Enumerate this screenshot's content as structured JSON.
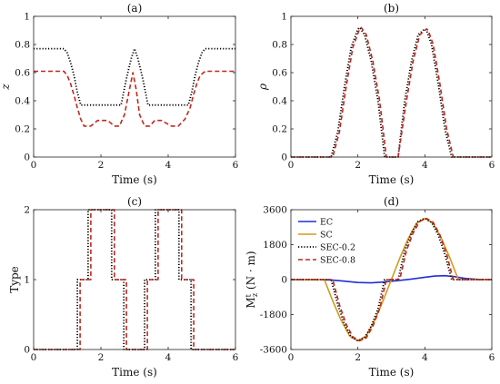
{
  "styles": {
    "EC": {
      "color": "#1f2fd6",
      "dash": "",
      "width": 1.6
    },
    "SC": {
      "color": "#d39a1c",
      "dash": "",
      "width": 1.6
    },
    "SEC-0.2": {
      "color": "#000000",
      "dash": "1.2,2",
      "width": 1.8
    },
    "SEC-0.8": {
      "color": "#c0271f",
      "dash": "5,3",
      "width": 1.6
    }
  },
  "chart_data": [
    {
      "type": "line",
      "title": "(a)",
      "xlabel": "Time (s)",
      "ylabel": "z",
      "xlim": [
        0,
        6
      ],
      "ylim": [
        0,
        1
      ],
      "xticks": [
        "0",
        "2",
        "4",
        "6"
      ],
      "yticks": [
        "0",
        "0.2",
        "0.4",
        "0.6",
        "0.8",
        "1"
      ],
      "grid": false,
      "series": [
        {
          "style": "SEC-0.2",
          "x": [
            0,
            0.9,
            1.0,
            1.1,
            1.2,
            1.3,
            1.4,
            2.6,
            2.75,
            2.9,
            3.0,
            3.1,
            3.25,
            3.4,
            4.6,
            4.7,
            4.8,
            4.9,
            5.0,
            5.1,
            5.2,
            6
          ],
          "y": [
            0.77,
            0.77,
            0.74,
            0.67,
            0.58,
            0.46,
            0.37,
            0.37,
            0.55,
            0.7,
            0.77,
            0.7,
            0.55,
            0.37,
            0.37,
            0.46,
            0.58,
            0.67,
            0.74,
            0.77,
            0.77,
            0.77
          ]
        },
        {
          "style": "SEC-0.8",
          "x": [
            0,
            0.9,
            1.0,
            1.1,
            1.2,
            1.3,
            1.4,
            1.5,
            1.7,
            1.9,
            2.2,
            2.4,
            2.55,
            2.7,
            2.85,
            2.95,
            3.05,
            3.15,
            3.3,
            3.45,
            3.6,
            3.8,
            4.1,
            4.3,
            4.5,
            4.65,
            4.75,
            4.85,
            4.95,
            5.1,
            6
          ],
          "y": [
            0.61,
            0.61,
            0.58,
            0.52,
            0.44,
            0.35,
            0.27,
            0.22,
            0.22,
            0.26,
            0.26,
            0.22,
            0.22,
            0.3,
            0.48,
            0.6,
            0.48,
            0.3,
            0.22,
            0.22,
            0.26,
            0.26,
            0.22,
            0.22,
            0.27,
            0.35,
            0.44,
            0.52,
            0.58,
            0.61,
            0.61
          ]
        }
      ]
    },
    {
      "type": "line",
      "title": "(b)",
      "xlabel": "Time (s)",
      "ylabel": "ρ",
      "xlim": [
        0,
        6
      ],
      "ylim": [
        0,
        1
      ],
      "xticks": [
        "0",
        "2",
        "4",
        "6"
      ],
      "yticks": [
        "0",
        "0.2",
        "0.4",
        "0.6",
        "0.8",
        "1"
      ],
      "grid": false,
      "series": [
        {
          "style": "SEC-0.2",
          "x": [
            0,
            1.2,
            1.4,
            1.6,
            1.8,
            2.0,
            2.05,
            2.2,
            2.4,
            2.6,
            2.8,
            3.2,
            3.4,
            3.6,
            3.8,
            4.0,
            4.05,
            4.2,
            4.4,
            4.6,
            4.8,
            6
          ],
          "y": [
            0,
            0,
            0.18,
            0.5,
            0.78,
            0.91,
            0.92,
            0.87,
            0.68,
            0.4,
            0,
            0,
            0.4,
            0.68,
            0.87,
            0.91,
            0.9,
            0.8,
            0.52,
            0.2,
            0,
            0
          ]
        },
        {
          "style": "SEC-0.8",
          "x": [
            0,
            1.25,
            1.45,
            1.65,
            1.85,
            2.05,
            2.1,
            2.25,
            2.45,
            2.65,
            2.85,
            3.2,
            3.45,
            3.65,
            3.85,
            4.05,
            4.1,
            4.25,
            4.45,
            4.65,
            4.85,
            6
          ],
          "y": [
            0,
            0,
            0.18,
            0.5,
            0.78,
            0.91,
            0.92,
            0.87,
            0.68,
            0.4,
            0,
            0,
            0.4,
            0.68,
            0.87,
            0.91,
            0.9,
            0.8,
            0.52,
            0.2,
            0,
            0
          ]
        }
      ]
    },
    {
      "type": "line",
      "title": "(c)",
      "xlabel": "Time (s)",
      "ylabel": "Type",
      "xlim": [
        0,
        6
      ],
      "ylim": [
        0,
        2
      ],
      "xticks": [
        "0",
        "2",
        "4",
        "6"
      ],
      "yticks": [
        "0",
        "1",
        "2"
      ],
      "grid": false,
      "series": [
        {
          "style": "SEC-0.2",
          "x": [
            0,
            1.3,
            1.3,
            1.62,
            1.62,
            2.32,
            2.32,
            2.68,
            2.68,
            3.3,
            3.3,
            3.62,
            3.62,
            4.32,
            4.32,
            4.68,
            4.68,
            6
          ],
          "y": [
            0,
            0,
            1,
            1,
            2,
            2,
            1,
            1,
            0,
            0,
            1,
            1,
            2,
            2,
            1,
            1,
            0,
            0
          ]
        },
        {
          "style": "SEC-0.8",
          "x": [
            0,
            1.38,
            1.38,
            1.7,
            1.7,
            2.4,
            2.4,
            2.76,
            2.76,
            3.38,
            3.38,
            3.7,
            3.7,
            4.4,
            4.4,
            4.76,
            4.76,
            6
          ],
          "y": [
            0,
            0,
            1,
            1,
            2,
            2,
            1,
            1,
            0,
            0,
            1,
            1,
            2,
            2,
            1,
            1,
            0,
            0
          ]
        }
      ]
    },
    {
      "type": "line",
      "title": "(d)",
      "xlabel": "Time (s)",
      "ylabel": "M",
      "ylabel_sup": "t",
      "ylabel_sub": "z",
      "ylabel_unit": " (N · m)",
      "xlim": [
        0,
        6
      ],
      "ylim": [
        -3600,
        3600
      ],
      "xticks": [
        "0",
        "2",
        "4",
        "6"
      ],
      "yticks": [
        "-3600",
        "-1800",
        "0",
        "1800",
        "3600"
      ],
      "grid": false,
      "legend": {
        "position": "top-left",
        "entries": [
          "EC",
          "SC",
          "SEC-0.2",
          "SEC-0.8"
        ]
      },
      "series": [
        {
          "name": "EC",
          "style": "EC",
          "x": [
            0,
            0.8,
            1.2,
            1.6,
            2.0,
            2.4,
            2.8,
            3.2,
            3.6,
            4.0,
            4.3,
            4.6,
            4.9,
            5.2,
            5.6,
            6
          ],
          "y": [
            0,
            0,
            -20,
            -80,
            -150,
            -170,
            -120,
            -50,
            30,
            120,
            180,
            200,
            150,
            60,
            10,
            0
          ]
        },
        {
          "name": "SC",
          "style": "SC",
          "x": [
            0,
            1.0,
            1.25,
            1.5,
            1.75,
            2.0,
            2.25,
            2.5,
            2.75,
            3.0,
            3.25,
            3.5,
            3.75,
            4.0,
            4.25,
            4.5,
            4.75,
            5.0,
            6
          ],
          "y": [
            0,
            0,
            -1100,
            -2100,
            -2900,
            -3150,
            -2900,
            -2100,
            -1100,
            0,
            1100,
            2100,
            2900,
            3150,
            2900,
            2100,
            1100,
            0,
            0
          ]
        },
        {
          "name": "SEC-0.2",
          "style": "SEC-0.2",
          "x": [
            0,
            1.2,
            1.4,
            1.6,
            1.8,
            2.0,
            2.2,
            2.4,
            2.6,
            2.8,
            3.2,
            3.4,
            3.6,
            3.8,
            4.0,
            4.2,
            4.4,
            4.6,
            4.8,
            6
          ],
          "y": [
            0,
            0,
            -1300,
            -2300,
            -2950,
            -3150,
            -3000,
            -2400,
            -1500,
            0,
            0,
            1500,
            2400,
            3000,
            3150,
            2950,
            2300,
            1300,
            0,
            0
          ]
        },
        {
          "name": "SEC-0.8",
          "style": "SEC-0.8",
          "x": [
            0,
            1.25,
            1.45,
            1.65,
            1.85,
            2.05,
            2.25,
            2.45,
            2.65,
            2.85,
            3.25,
            3.45,
            3.65,
            3.85,
            4.05,
            4.25,
            4.45,
            4.65,
            4.85,
            6
          ],
          "y": [
            0,
            0,
            -1300,
            -2300,
            -2950,
            -3150,
            -3000,
            -2400,
            -1500,
            0,
            0,
            1500,
            2400,
            3000,
            3150,
            2950,
            2300,
            1300,
            0,
            0
          ]
        }
      ]
    }
  ]
}
